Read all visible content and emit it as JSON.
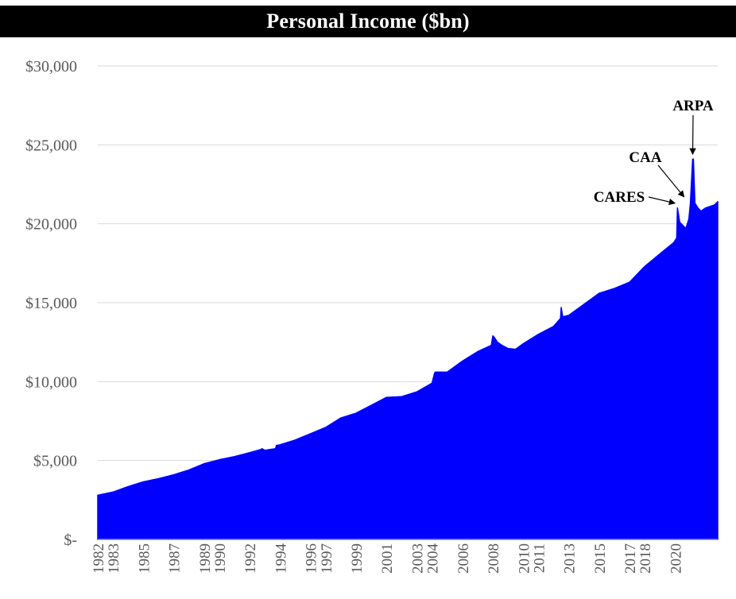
{
  "chart_data": {
    "type": "area",
    "title": "Personal Income ($bn)",
    "xlabel": "",
    "ylabel": "",
    "ylim": [
      0,
      30000
    ],
    "yticks": [
      0,
      5000,
      10000,
      15000,
      20000,
      25000,
      30000
    ],
    "ytick_labels": [
      "$-",
      "$5,000",
      "$10,000",
      "$15,000",
      "$20,000",
      "$25,000",
      "$30,000"
    ],
    "xlim": [
      1982.0,
      2022.8
    ],
    "xticks": [
      1982,
      1983,
      1985,
      1987,
      1989,
      1990,
      1992,
      1994,
      1996,
      1997,
      1999,
      2001,
      2003,
      2004,
      2006,
      2008,
      2010,
      2011,
      2013,
      2015,
      2017,
      2018,
      2020
    ],
    "xtick_labels": [
      "1982",
      "1983",
      "1985",
      "1987",
      "1989",
      "1990",
      "1992",
      "1994",
      "1996",
      "1997",
      "1999",
      "2001",
      "2003",
      "2004",
      "2006",
      "2008",
      "2010",
      "2011",
      "2013",
      "2015",
      "2017",
      "2018",
      "2020"
    ],
    "grid": true,
    "colors": {
      "fill": "#0000ff",
      "grid": "#d9d9d9",
      "axis_text": "#595959",
      "title_bg": "#000000",
      "title_text": "#ffffff"
    },
    "series": [
      {
        "x": [
          1982.0,
          1983.0,
          1984.0,
          1985.0,
          1986.0,
          1987.0,
          1988.0,
          1989.0,
          1990.0,
          1991.0,
          1992.0,
          1992.75,
          1992.8,
          1993.0,
          1993.7,
          1993.75,
          1994.0,
          1995.0,
          1996.0,
          1997.0,
          1998.0,
          1999.0,
          2000.0,
          2001.0,
          2002.0,
          2003.0,
          2004.0,
          2004.15,
          2004.2,
          2005.0,
          2006.0,
          2007.0,
          2007.9,
          2008.0,
          2008.1,
          2008.3,
          2008.6,
          2009.0,
          2009.5,
          2010.0,
          2011.0,
          2012.0,
          2012.45,
          2012.5,
          2012.6,
          2013.0,
          2014.0,
          2015.0,
          2016.0,
          2017.0,
          2018.0,
          2019.0,
          2019.9,
          2020.1,
          2020.15,
          2020.3,
          2020.5,
          2020.7,
          2020.9,
          2021.0,
          2021.15,
          2021.2,
          2021.3,
          2021.5,
          2021.7,
          2022.0,
          2022.3,
          2022.6,
          2022.8
        ],
        "y": [
          2800,
          3000,
          3350,
          3650,
          3850,
          4100,
          4400,
          4800,
          5050,
          5250,
          5500,
          5700,
          5750,
          5650,
          5750,
          5950,
          6000,
          6300,
          6700,
          7100,
          7700,
          8000,
          8500,
          9000,
          9050,
          9350,
          9900,
          10500,
          10600,
          10600,
          11300,
          11900,
          12300,
          12900,
          12800,
          12500,
          12300,
          12100,
          12050,
          12400,
          13000,
          13500,
          14000,
          14700,
          14100,
          14200,
          14900,
          15600,
          15900,
          16300,
          17300,
          18100,
          18800,
          19100,
          21000,
          20100,
          19900,
          19700,
          20300,
          21300,
          24100,
          24100,
          21300,
          21000,
          20800,
          21000,
          21100,
          21200,
          21400
        ]
      }
    ],
    "annotations": [
      {
        "label": "CARES",
        "x": 2020.15,
        "y": 21000
      },
      {
        "label": "CAA",
        "x": 2020.9,
        "y": 21400
      },
      {
        "label": "ARPA",
        "x": 2021.15,
        "y": 24100
      }
    ]
  }
}
